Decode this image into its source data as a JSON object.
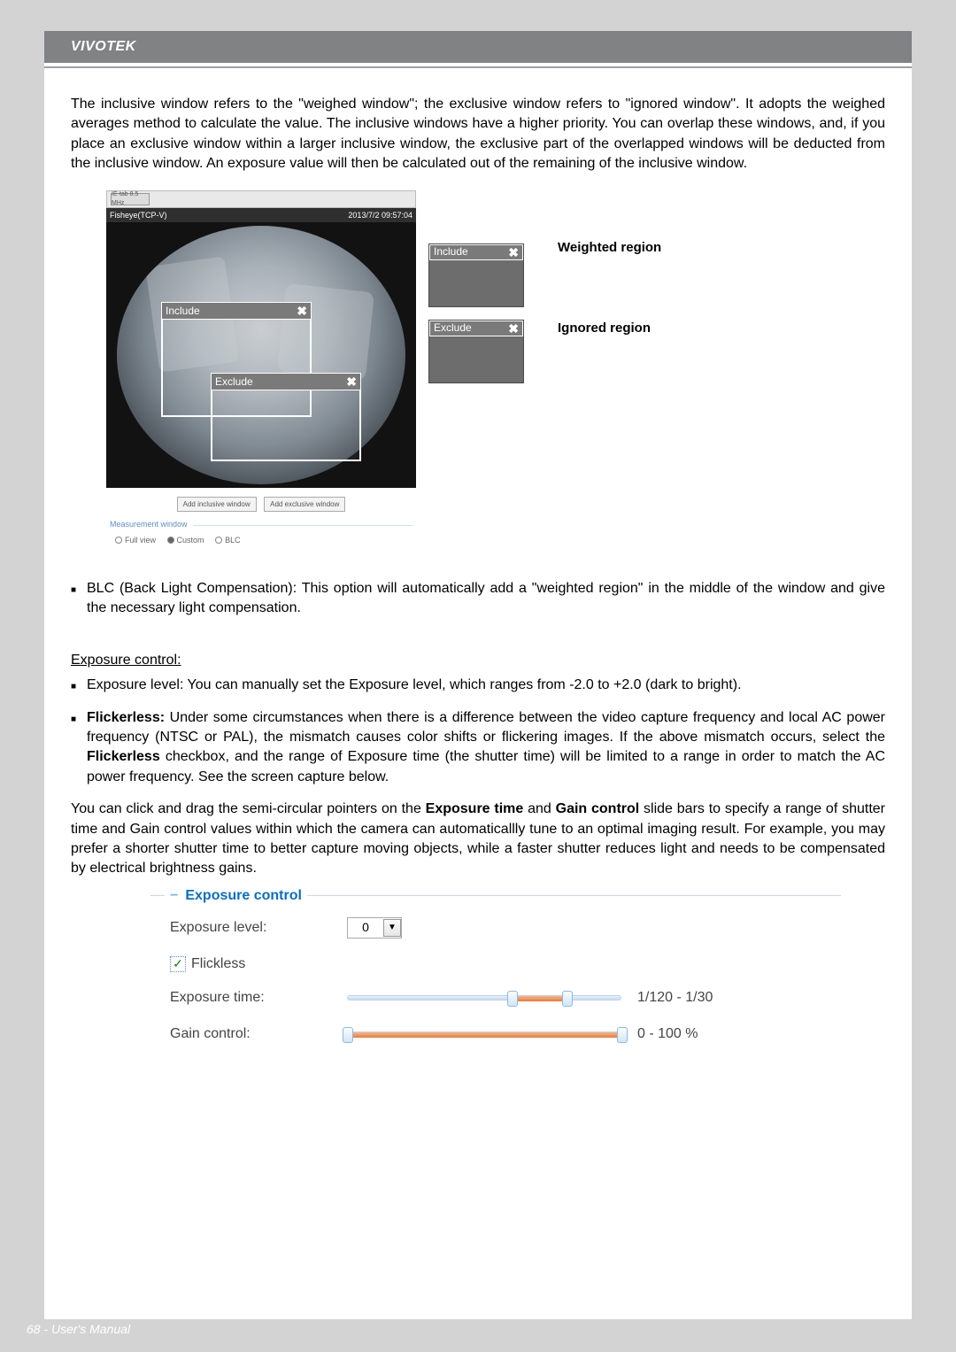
{
  "meta": {
    "page_number": 68,
    "footer_text": "68 - User's Manual"
  },
  "brand": "VIVOTEK",
  "intro_para": "The inclusive window refers to the \"weighed window\"; the exclusive window refers to \"ignored window\". It adopts the weighed averages method to calculate the value. The inclusive windows have a higher priority. You can overlap these windows, and, if you place an exclusive window within a larger inclusive window, the exclusive part of the overlapped windows will be deducted from the inclusive window. An exposure value will then be calculated out of the remaining of the inclusive window.",
  "diagram": {
    "top_button": "IE-tab 8.5 MHz",
    "bar_left": "Fisheye(TCP-V)",
    "bar_right": "2013/7/2 09:57:04",
    "include_label": "Include",
    "exclude_label": "Exclude",
    "add_inclusive": "Add inclusive window",
    "add_exclusive": "Add exclusive window",
    "measure_title": "Measurement window",
    "radios": {
      "full": "Full view",
      "custom": "Custom",
      "blc": "BLC",
      "selected": "custom"
    },
    "legend_weighted": "Weighted region",
    "legend_ignored": "Ignored region",
    "close_glyph": "✖"
  },
  "blc_text": "BLC (Back Light Compensation): This option will automatically add a \"weighted region\" in the middle of the window and give the necessary light compensation.",
  "exposure_heading": "Exposure control:",
  "exposure_level_text": "Exposure level: You can manually set the Exposure level, which ranges from -2.0 to +2.0 (dark to bright).",
  "flickerless_label": "Flickerless:",
  "flickerless_text": " Under some circumstances when there is a difference between the video capture frequency and local AC power frequency (NTSC or PAL), the mismatch causes color shifts or flickering images. If the above mismatch occurs, select the ",
  "flickerless_bold": "Flickerless",
  "flickerless_text2": " checkbox, and the range of Exposure time (the shutter time) will be limited to a range in order to match the AC power frequency. See the screen capture below.",
  "slide_para_1": "You can click and drag the semi-circular pointers on the ",
  "slide_bold_1": "Exposure time",
  "slide_mid": " and ",
  "slide_bold_2": "Gain control",
  "slide_para_2": " slide bars to specify a range of shutter time and Gain control values within which the camera can automaticallly tune to an optimal imaging result. For example, you may prefer a shorter shutter time to better capture moving objects, while a faster shutter reduces light and needs to be compensated by electrical brightness gains.",
  "panel": {
    "title": "Exposure control",
    "level_label": "Exposure level:",
    "level_value": "0",
    "flickless_label": "Flickless",
    "flickless_checked": true,
    "exposure_time_label": "Exposure time:",
    "exposure_time_range": "1/120 - 1/30",
    "exposure_time_fill_left_pct": 60,
    "exposure_time_fill_right_pct": 80,
    "gain_label": "Gain control:",
    "gain_range": "0 - 100 %",
    "gain_fill_left_pct": 0,
    "gain_fill_right_pct": 100,
    "colors": {
      "accent": "#0a6ec0",
      "track_fill": "#e57d3c"
    }
  }
}
